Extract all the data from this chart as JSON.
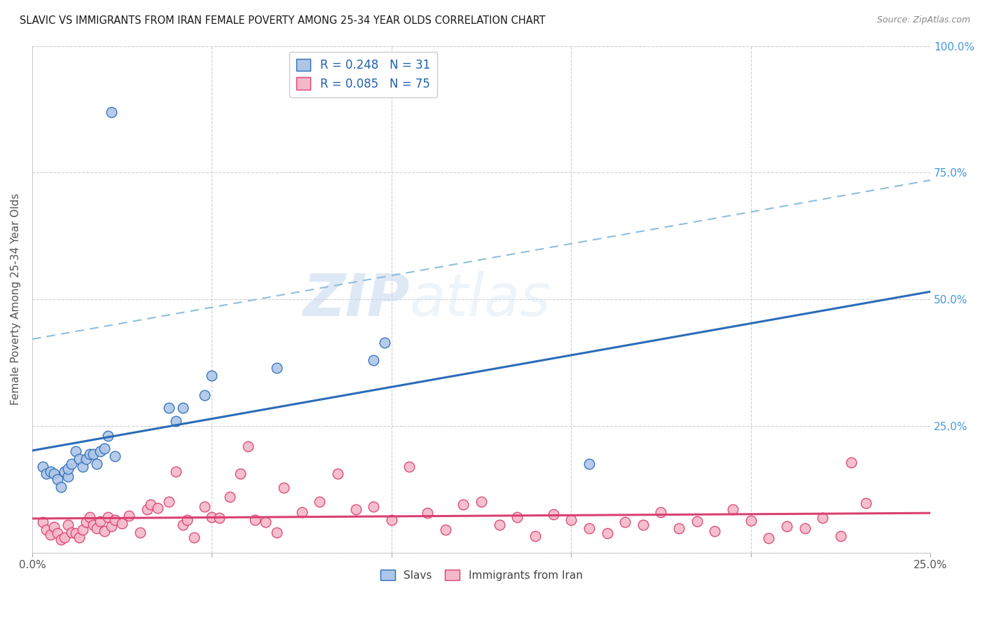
{
  "title": "SLAVIC VS IMMIGRANTS FROM IRAN FEMALE POVERTY AMONG 25-34 YEAR OLDS CORRELATION CHART",
  "source": "Source: ZipAtlas.com",
  "ylabel": "Female Poverty Among 25-34 Year Olds",
  "xlim": [
    0,
    0.25
  ],
  "ylim": [
    0,
    1.0
  ],
  "xticks": [
    0.0,
    0.05,
    0.1,
    0.15,
    0.2,
    0.25
  ],
  "xtick_labels": [
    "0.0%",
    "",
    "",
    "",
    "",
    "25.0%"
  ],
  "yticks": [
    0.0,
    0.25,
    0.5,
    0.75,
    1.0
  ],
  "ytick_labels_right": [
    "",
    "25.0%",
    "50.0%",
    "75.0%",
    "100.0%"
  ],
  "slavs_R": "0.248",
  "slavs_N": "31",
  "iran_R": "0.085",
  "iran_N": "75",
  "slavs_color": "#aec6e8",
  "iran_color": "#f5b8c8",
  "slavs_line_color": "#2b6cb8",
  "iran_line_color": "#d94070",
  "slavs_dashed_color": "#90bedd",
  "background_color": "#ffffff",
  "grid_color": "#d0d0d0",
  "watermark_zip": "ZIP",
  "watermark_atlas": "atlas",
  "legend_color": "#2060b0",
  "axis_label_color": "#555555",
  "right_axis_color": "#4499dd",
  "slavs_x": [
    0.003,
    0.004,
    0.005,
    0.006,
    0.007,
    0.008,
    0.009,
    0.01,
    0.01,
    0.011,
    0.012,
    0.013,
    0.014,
    0.015,
    0.016,
    0.017,
    0.018,
    0.019,
    0.02,
    0.021,
    0.023,
    0.038,
    0.04,
    0.042,
    0.048,
    0.05,
    0.068,
    0.095,
    0.098,
    0.155,
    0.022
  ],
  "slavs_y": [
    0.17,
    0.155,
    0.16,
    0.155,
    0.145,
    0.13,
    0.16,
    0.15,
    0.165,
    0.175,
    0.2,
    0.185,
    0.17,
    0.185,
    0.195,
    0.195,
    0.175,
    0.2,
    0.205,
    0.23,
    0.19,
    0.285,
    0.26,
    0.285,
    0.31,
    0.35,
    0.365,
    0.38,
    0.415,
    0.175,
    0.87
  ],
  "iran_x": [
    0.003,
    0.004,
    0.005,
    0.006,
    0.007,
    0.008,
    0.009,
    0.01,
    0.011,
    0.012,
    0.013,
    0.014,
    0.015,
    0.016,
    0.017,
    0.018,
    0.019,
    0.02,
    0.021,
    0.022,
    0.023,
    0.025,
    0.027,
    0.03,
    0.032,
    0.033,
    0.035,
    0.038,
    0.04,
    0.042,
    0.043,
    0.045,
    0.048,
    0.05,
    0.052,
    0.055,
    0.058,
    0.06,
    0.062,
    0.065,
    0.068,
    0.07,
    0.075,
    0.08,
    0.085,
    0.09,
    0.095,
    0.1,
    0.105,
    0.11,
    0.115,
    0.12,
    0.125,
    0.13,
    0.135,
    0.14,
    0.145,
    0.15,
    0.155,
    0.16,
    0.165,
    0.17,
    0.175,
    0.18,
    0.185,
    0.19,
    0.195,
    0.2,
    0.205,
    0.21,
    0.215,
    0.22,
    0.225,
    0.228,
    0.232
  ],
  "iran_y": [
    0.06,
    0.045,
    0.035,
    0.05,
    0.038,
    0.025,
    0.03,
    0.055,
    0.04,
    0.038,
    0.03,
    0.045,
    0.06,
    0.07,
    0.055,
    0.048,
    0.062,
    0.042,
    0.07,
    0.052,
    0.065,
    0.058,
    0.072,
    0.04,
    0.085,
    0.095,
    0.088,
    0.1,
    0.16,
    0.055,
    0.065,
    0.03,
    0.09,
    0.07,
    0.068,
    0.11,
    0.155,
    0.21,
    0.065,
    0.06,
    0.04,
    0.128,
    0.08,
    0.1,
    0.155,
    0.085,
    0.09,
    0.065,
    0.17,
    0.078,
    0.045,
    0.095,
    0.1,
    0.055,
    0.07,
    0.032,
    0.075,
    0.065,
    0.048,
    0.038,
    0.06,
    0.055,
    0.08,
    0.048,
    0.062,
    0.042,
    0.085,
    0.063,
    0.028,
    0.052,
    0.048,
    0.068,
    0.032,
    0.178,
    0.098
  ]
}
